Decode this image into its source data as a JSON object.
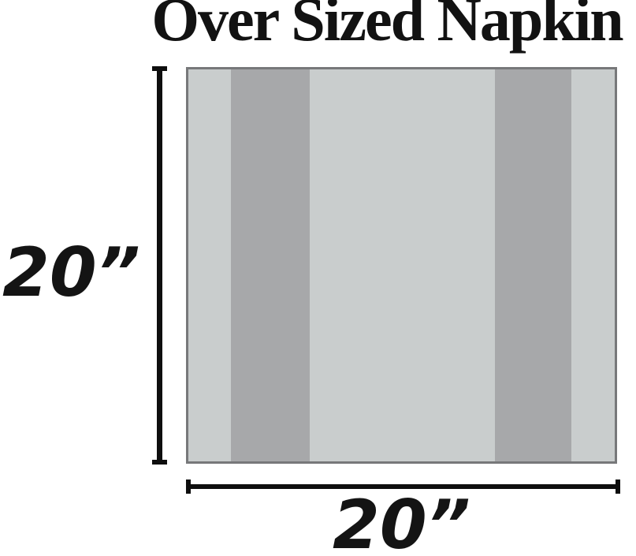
{
  "title": {
    "text": "Over Sized Napkin",
    "color": "#121212"
  },
  "napkin": {
    "base_color": "#c9cdcd",
    "stripe_color": "#a7a8aa",
    "border_color": "#77787a"
  },
  "dimensions": {
    "height_label": "20”",
    "width_label": "20”",
    "line_color": "#0e0e0e",
    "text_color": "#141414"
  }
}
